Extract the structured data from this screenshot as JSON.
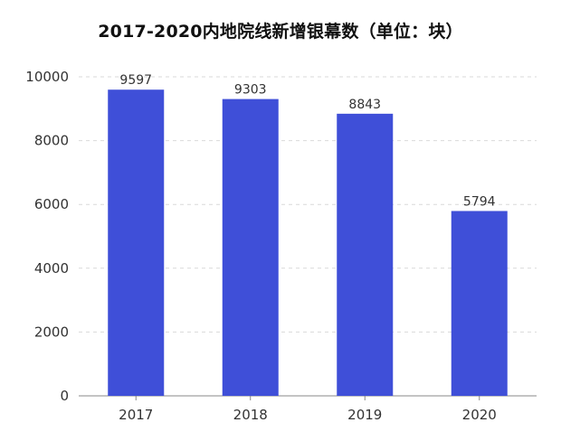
{
  "chart_data": {
    "type": "bar",
    "title": "2017-2020内地院线新增银幕数（单位：块）",
    "categories": [
      "2017",
      "2018",
      "2019",
      "2020"
    ],
    "values": [
      9597,
      9303,
      8843,
      5794
    ],
    "ylim": [
      0,
      10000
    ],
    "yticks": [
      0,
      2000,
      4000,
      6000,
      8000,
      10000
    ],
    "grid": true,
    "bar_color": "#3f4fd8",
    "xlabel": "",
    "ylabel": ""
  }
}
